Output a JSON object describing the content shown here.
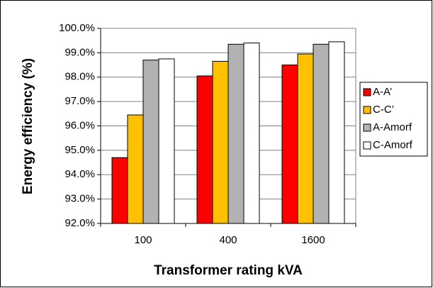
{
  "chart_data": {
    "type": "bar",
    "xlabel": "Transformer rating kVA",
    "ylabel": "Energy efficiency (%)",
    "categories": [
      "100",
      "400",
      "1600"
    ],
    "series": [
      {
        "name": "A-A’",
        "color": "#ff0000",
        "values": [
          94.7,
          98.05,
          98.5
        ]
      },
      {
        "name": "C-C’",
        "color": "#ffc000",
        "values": [
          96.45,
          98.65,
          98.95
        ]
      },
      {
        "name": "A-Amorf",
        "color": "#b2b2b2",
        "values": [
          98.7,
          99.35,
          99.35
        ]
      },
      {
        "name": "C-Amorf",
        "color": "#ffffff",
        "values": [
          98.75,
          99.4,
          99.45
        ]
      }
    ],
    "ylim": [
      92,
      100
    ],
    "yticks": [
      {
        "value": 92,
        "label": "92.0%"
      },
      {
        "value": 93,
        "label": "93.0%"
      },
      {
        "value": 94,
        "label": "94.0%"
      },
      {
        "value": 95,
        "label": "95.0%"
      },
      {
        "value": 96,
        "label": "96.0%"
      },
      {
        "value": 97,
        "label": "97.0%"
      },
      {
        "value": 98,
        "label": "98.0%"
      },
      {
        "value": 99,
        "label": "99.0%"
      },
      {
        "value": 100,
        "label": "100.0%"
      }
    ],
    "grid": true,
    "legend": "right"
  }
}
